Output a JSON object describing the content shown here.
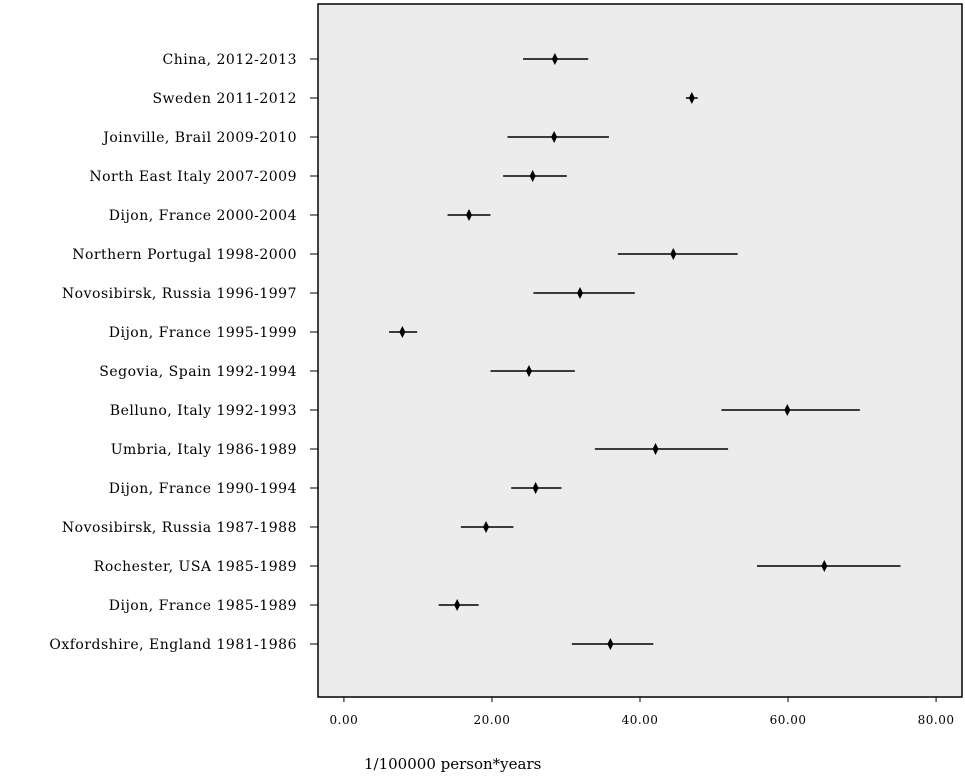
{
  "chart_data": {
    "type": "forest",
    "xlabel": "1/100000 person*years",
    "xlim": [
      -3.5,
      83.5
    ],
    "xticks": [
      0,
      20,
      40,
      60,
      80
    ],
    "xtick_labels": [
      "0.00",
      "20.00",
      "40.00",
      "60.00",
      "80.00"
    ],
    "grid": false,
    "background": "#ececec",
    "rows": [
      {
        "label": "China, 2012-2013",
        "estimate": 28.5,
        "low": 24.2,
        "high": 33.0
      },
      {
        "label": "Sweden 2011-2012",
        "estimate": 47.0,
        "low": 46.2,
        "high": 47.8
      },
      {
        "label": "Joinville, Brail 2009-2010",
        "estimate": 28.4,
        "low": 22.1,
        "high": 35.8
      },
      {
        "label": "North East Italy 2007-2009",
        "estimate": 25.5,
        "low": 21.5,
        "high": 30.1
      },
      {
        "label": "Dijon, France 2000-2004",
        "estimate": 16.9,
        "low": 14.0,
        "high": 19.8
      },
      {
        "label": "Northern Portugal 1998-2000",
        "estimate": 44.5,
        "low": 37.0,
        "high": 53.2
      },
      {
        "label": "Novosibirsk, Russia 1996-1997",
        "estimate": 31.9,
        "low": 25.6,
        "high": 39.3
      },
      {
        "label": "Dijon, France 1995-1999",
        "estimate": 7.9,
        "low": 6.1,
        "high": 9.9
      },
      {
        "label": "Segovia, Spain 1992-1994",
        "estimate": 25.0,
        "low": 19.8,
        "high": 31.2
      },
      {
        "label": "Belluno, Italy 1992-1993",
        "estimate": 59.9,
        "low": 51.0,
        "high": 69.7
      },
      {
        "label": "Umbria, Italy 1986-1989",
        "estimate": 42.1,
        "low": 33.9,
        "high": 51.9
      },
      {
        "label": "Dijon, France 1990-1994",
        "estimate": 25.9,
        "low": 22.6,
        "high": 29.4
      },
      {
        "label": "Novosibirsk, Russia 1987-1988",
        "estimate": 19.2,
        "low": 15.8,
        "high": 22.9
      },
      {
        "label": "Rochester, USA 1985-1989",
        "estimate": 64.9,
        "low": 55.8,
        "high": 75.2
      },
      {
        "label": "Dijon, France 1985-1989",
        "estimate": 15.3,
        "low": 12.8,
        "high": 18.2
      },
      {
        "label": "Oxfordshire, England 1981-1986",
        "estimate": 36.0,
        "low": 30.8,
        "high": 41.8
      }
    ]
  }
}
